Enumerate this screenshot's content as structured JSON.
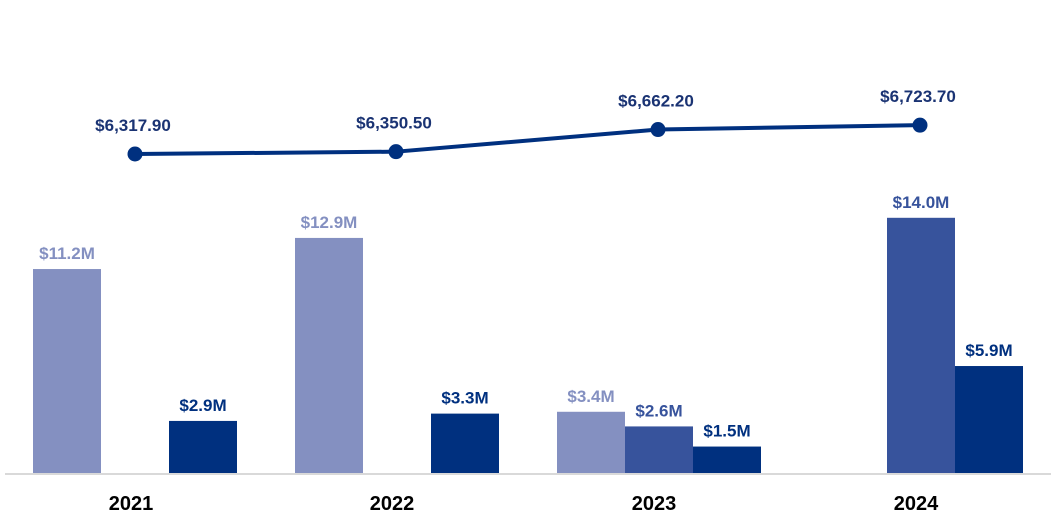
{
  "chart_data": {
    "type": "bar+line",
    "categories": [
      "2021",
      "2022",
      "2023",
      "2024"
    ],
    "bar_series": [
      {
        "color": "#8490c1",
        "values": [
          11.2,
          12.9,
          3.4,
          null
        ],
        "labels": [
          "$11.2M",
          "$12.9M",
          "$3.4M",
          null
        ]
      },
      {
        "color": "#37539c",
        "values": [
          null,
          null,
          2.6,
          14.0
        ],
        "labels": [
          null,
          null,
          "$2.6M",
          "$14.0M"
        ]
      },
      {
        "color": "#00307f",
        "values": [
          2.9,
          3.3,
          1.5,
          5.9
        ],
        "labels": [
          "$2.9M",
          "$3.3M",
          "$1.5M",
          "$5.9M"
        ]
      }
    ],
    "line_series": {
      "color": "#00307f",
      "values": [
        6317.9,
        6350.5,
        6662.2,
        6723.7
      ],
      "labels": [
        "$6,317.90",
        "$6,350.50",
        "$6,662.20",
        "$6,723.70"
      ]
    },
    "grid": false,
    "legend": "none"
  }
}
